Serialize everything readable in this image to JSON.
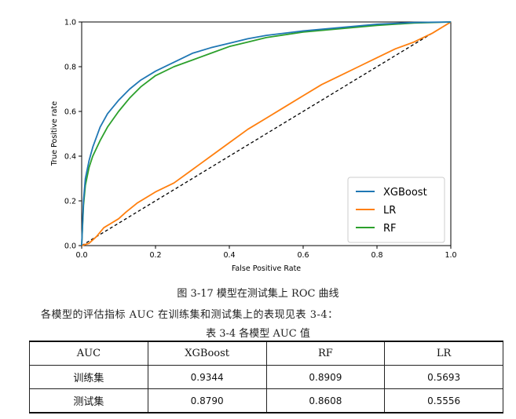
{
  "chart_data": {
    "type": "line",
    "xlabel": "False Positive Rate",
    "ylabel": "True Positive rate",
    "xlim": [
      0,
      1
    ],
    "ylim": [
      0,
      1
    ],
    "xticks": [
      "0.0",
      "0.2",
      "0.4",
      "0.6",
      "0.8",
      "1.0"
    ],
    "yticks": [
      "0.0",
      "0.2",
      "0.4",
      "0.6",
      "0.8",
      "1.0"
    ],
    "legend_position": "lower-right",
    "series": [
      {
        "name": "XGBoost",
        "color": "#1f77b4",
        "x": [
          0,
          0.005,
          0.01,
          0.02,
          0.03,
          0.05,
          0.07,
          0.1,
          0.13,
          0.16,
          0.2,
          0.25,
          0.3,
          0.35,
          0.4,
          0.45,
          0.5,
          0.6,
          0.7,
          0.8,
          0.9,
          1.0
        ],
        "y": [
          0,
          0.2,
          0.3,
          0.38,
          0.44,
          0.53,
          0.59,
          0.65,
          0.7,
          0.74,
          0.78,
          0.82,
          0.86,
          0.885,
          0.905,
          0.925,
          0.94,
          0.96,
          0.975,
          0.99,
          0.998,
          1.0
        ]
      },
      {
        "name": "LR",
        "color": "#ff7f0e",
        "x": [
          0,
          0.02,
          0.04,
          0.06,
          0.08,
          0.1,
          0.12,
          0.15,
          0.2,
          0.25,
          0.3,
          0.35,
          0.4,
          0.45,
          0.5,
          0.55,
          0.6,
          0.65,
          0.7,
          0.75,
          0.8,
          0.85,
          0.9,
          0.95,
          1.0
        ],
        "y": [
          0,
          0.01,
          0.04,
          0.08,
          0.1,
          0.12,
          0.15,
          0.19,
          0.24,
          0.28,
          0.34,
          0.4,
          0.46,
          0.52,
          0.57,
          0.62,
          0.67,
          0.72,
          0.76,
          0.8,
          0.84,
          0.88,
          0.91,
          0.95,
          1.0
        ]
      },
      {
        "name": "RF",
        "color": "#2ca02c",
        "x": [
          0,
          0.005,
          0.01,
          0.02,
          0.03,
          0.05,
          0.07,
          0.1,
          0.13,
          0.16,
          0.2,
          0.25,
          0.3,
          0.35,
          0.4,
          0.45,
          0.5,
          0.6,
          0.7,
          0.8,
          0.9,
          1.0
        ],
        "y": [
          0,
          0.18,
          0.27,
          0.35,
          0.4,
          0.47,
          0.53,
          0.6,
          0.66,
          0.71,
          0.76,
          0.8,
          0.83,
          0.86,
          0.89,
          0.91,
          0.93,
          0.955,
          0.97,
          0.985,
          0.995,
          1.0
        ]
      }
    ],
    "reference_line": {
      "style": "dashed",
      "color": "#000000",
      "x": [
        0,
        1
      ],
      "y": [
        0,
        1
      ]
    }
  },
  "figure_caption": "图 3-17  模型在测试集上 ROC 曲线",
  "paragraph": "各模型的评估指标 AUC 在训练集和测试集上的表现见表 3-4：",
  "table_caption": "表 3-4  各模型 AUC 值",
  "table": {
    "headers": [
      "AUC",
      "XGBoost",
      "RF",
      "LR"
    ],
    "rows": [
      [
        "训练集",
        "0.9344",
        "0.8909",
        "0.5693"
      ],
      [
        "测试集",
        "0.8790",
        "0.8608",
        "0.5556"
      ]
    ]
  }
}
